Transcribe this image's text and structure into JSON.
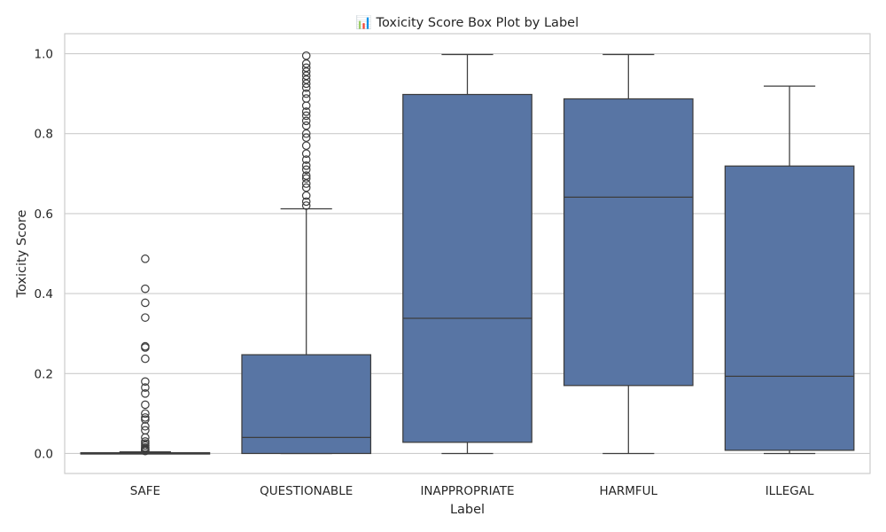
{
  "chart_data": {
    "type": "box",
    "title": "📊 Toxicity Score Box Plot by Label",
    "xlabel": "Label",
    "ylabel": "Toxicity Score",
    "ylim": [
      -0.05,
      1.05
    ],
    "yticks": [
      "0.0",
      "0.2",
      "0.4",
      "0.6",
      "0.8",
      "1.0"
    ],
    "grid": "horizontal",
    "colors": {
      "box_fill": "#5875a4",
      "box_edge": "#3d3d3d",
      "grid": "#cccccc",
      "frame": "#cccccc"
    },
    "categories": [
      "SAFE",
      "QUESTIONABLE",
      "INAPPROPRIATE",
      "HARMFUL",
      "ILLEGAL"
    ],
    "boxes": [
      {
        "label": "SAFE",
        "whisker_low": 0.0,
        "q1": 0.0,
        "median": 0.0,
        "q3": 0.002,
        "whisker_high": 0.004,
        "outliers": [
          0.487,
          0.412,
          0.377,
          0.34,
          0.268,
          0.265,
          0.237,
          0.18,
          0.165,
          0.15,
          0.122,
          0.1,
          0.09,
          0.085,
          0.068,
          0.058,
          0.04,
          0.03,
          0.025,
          0.02,
          0.015,
          0.012,
          0.01,
          0.008,
          0.006
        ]
      },
      {
        "label": "QUESTIONABLE",
        "whisker_low": 0.0,
        "q1": 0.0,
        "median": 0.04,
        "q3": 0.247,
        "whisker_high": 0.612,
        "outliers": [
          0.995,
          0.975,
          0.965,
          0.955,
          0.945,
          0.935,
          0.925,
          0.915,
          0.9,
          0.888,
          0.87,
          0.855,
          0.845,
          0.832,
          0.82,
          0.8,
          0.79,
          0.77,
          0.75,
          0.735,
          0.72,
          0.71,
          0.695,
          0.688,
          0.675,
          0.665,
          0.645,
          0.63,
          0.62
        ]
      },
      {
        "label": "INAPPROPRIATE",
        "whisker_low": 0.0,
        "q1": 0.028,
        "median": 0.338,
        "q3": 0.898,
        "whisker_high": 0.998,
        "outliers": []
      },
      {
        "label": "HARMFUL",
        "whisker_low": 0.0,
        "q1": 0.17,
        "median": 0.641,
        "q3": 0.887,
        "whisker_high": 0.998,
        "outliers": []
      },
      {
        "label": "ILLEGAL",
        "whisker_low": 0.0,
        "q1": 0.008,
        "median": 0.193,
        "q3": 0.719,
        "whisker_high": 0.919,
        "outliers": []
      }
    ]
  }
}
